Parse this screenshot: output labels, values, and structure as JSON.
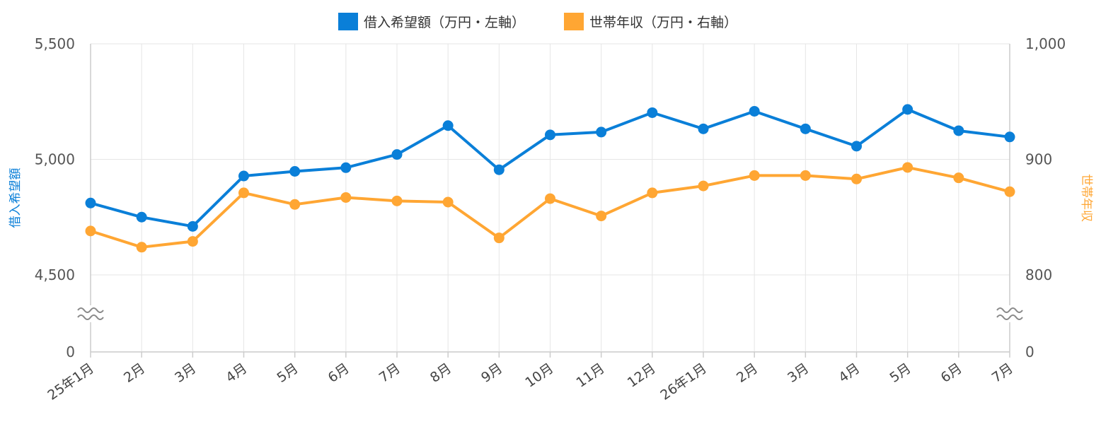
{
  "chart_data": {
    "type": "line",
    "categories": [
      "25年1月",
      "2月",
      "3月",
      "4月",
      "5月",
      "6月",
      "7月",
      "8月",
      "9月",
      "10月",
      "11月",
      "12月",
      "26年1月",
      "2月",
      "3月",
      "4月",
      "5月",
      "6月",
      "7月"
    ],
    "series": [
      {
        "name": "借入希望額（万円・左軸）",
        "axis": "left",
        "color": "#0a7fd8",
        "values": [
          4811,
          4750,
          4710,
          4928,
          4948,
          4964,
          5021,
          5146,
          4955,
          5106,
          5118,
          5202,
          5132,
          5208,
          5132,
          5057,
          5216,
          5124,
          5097
        ]
      },
      {
        "name": "世帯年収（万円・右軸）",
        "axis": "right",
        "color": "#ffa633",
        "values": [
          838,
          824,
          829,
          871,
          861,
          867,
          864,
          863,
          832,
          866,
          851,
          871,
          877,
          886,
          886,
          883,
          893,
          884,
          872
        ]
      }
    ],
    "left_axis": {
      "label": "借入希望額",
      "range": [
        4500,
        5500
      ],
      "ticks": [
        "5,500",
        "5,000",
        "4,500",
        "0"
      ],
      "break": true
    },
    "right_axis": {
      "label": "世帯年収",
      "range": [
        800,
        1000
      ],
      "ticks": [
        "1,000",
        "900",
        "800",
        "0"
      ],
      "break": true
    },
    "grid": true,
    "legend_position": "top-center"
  }
}
